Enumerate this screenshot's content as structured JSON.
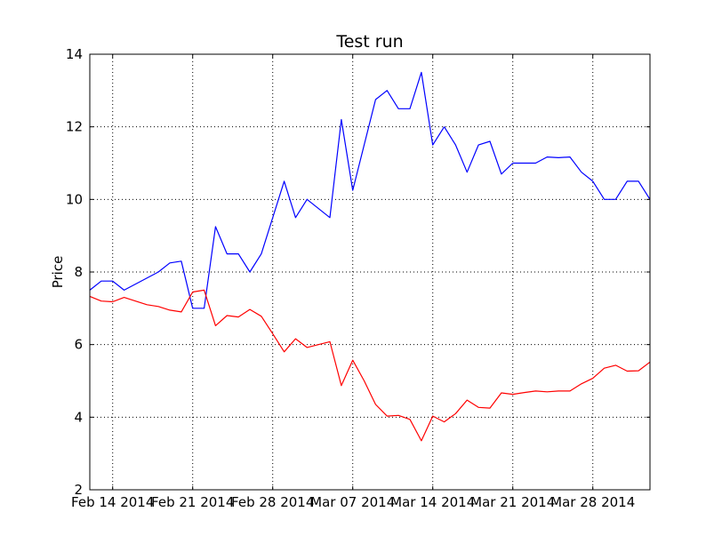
{
  "chart_data": {
    "type": "line",
    "title": "Test run",
    "xlabel": "",
    "ylabel": "Price",
    "ylim": [
      2,
      14
    ],
    "y_ticks": [
      2,
      4,
      6,
      8,
      10,
      12,
      14
    ],
    "x_range": [
      "2014-02-12",
      "2014-04-01"
    ],
    "x_ticks": [
      {
        "date": "2014-02-14",
        "label": "Feb 14 2014"
      },
      {
        "date": "2014-02-21",
        "label": "Feb 21 2014"
      },
      {
        "date": "2014-02-28",
        "label": "Feb 28 2014"
      },
      {
        "date": "2014-03-07",
        "label": "Mar 07 2014"
      },
      {
        "date": "2014-03-14",
        "label": "Mar 14 2014"
      },
      {
        "date": "2014-03-21",
        "label": "Mar 21 2014"
      },
      {
        "date": "2014-03-28",
        "label": "Mar 28 2014"
      }
    ],
    "grid": true,
    "series": [
      {
        "color": "#0000ff",
        "points": [
          [
            "2014-02-12",
            7.5
          ],
          [
            "2014-02-13",
            7.75
          ],
          [
            "2014-02-14",
            7.75
          ],
          [
            "2014-02-15",
            7.5
          ],
          [
            "2014-02-18",
            8.0
          ],
          [
            "2014-02-19",
            8.25
          ],
          [
            "2014-02-20",
            8.3
          ],
          [
            "2014-02-21",
            7.0
          ],
          [
            "2014-02-22",
            7.0
          ],
          [
            "2014-02-23",
            9.25
          ],
          [
            "2014-02-24",
            8.5
          ],
          [
            "2014-02-25",
            8.5
          ],
          [
            "2014-02-26",
            8.0
          ],
          [
            "2014-02-27",
            8.5
          ],
          [
            "2014-03-01",
            10.5
          ],
          [
            "2014-03-02",
            9.5
          ],
          [
            "2014-03-03",
            10.0
          ],
          [
            "2014-03-05",
            9.5
          ],
          [
            "2014-03-06",
            12.2
          ],
          [
            "2014-03-07",
            10.25
          ],
          [
            "2014-03-09",
            12.75
          ],
          [
            "2014-03-10",
            13.0
          ],
          [
            "2014-03-11",
            12.5
          ],
          [
            "2014-03-12",
            12.5
          ],
          [
            "2014-03-13",
            13.5
          ],
          [
            "2014-03-14",
            11.5
          ],
          [
            "2014-03-15",
            12.0
          ],
          [
            "2014-03-16",
            11.5
          ],
          [
            "2014-03-17",
            10.75
          ],
          [
            "2014-03-18",
            11.5
          ],
          [
            "2014-03-19",
            11.6
          ],
          [
            "2014-03-20",
            10.7
          ],
          [
            "2014-03-21",
            11.0
          ],
          [
            "2014-03-23",
            11.0
          ],
          [
            "2014-03-24",
            11.17
          ],
          [
            "2014-03-25",
            11.15
          ],
          [
            "2014-03-26",
            11.17
          ],
          [
            "2014-03-27",
            10.75
          ],
          [
            "2014-03-28",
            10.5
          ],
          [
            "2014-03-29",
            10.0
          ],
          [
            "2014-03-30",
            10.0
          ],
          [
            "2014-03-31",
            10.5
          ],
          [
            "2014-04-01",
            10.5
          ],
          [
            "2014-04-02",
            10.0
          ]
        ]
      },
      {
        "color": "#ff0000",
        "points": [
          [
            "2014-02-12",
            7.33
          ],
          [
            "2014-02-13",
            7.2
          ],
          [
            "2014-02-14",
            7.18
          ],
          [
            "2014-02-15",
            7.3
          ],
          [
            "2014-02-16",
            7.2
          ],
          [
            "2014-02-17",
            7.1
          ],
          [
            "2014-02-18",
            7.05
          ],
          [
            "2014-02-19",
            6.95
          ],
          [
            "2014-02-20",
            6.9
          ],
          [
            "2014-02-21",
            7.45
          ],
          [
            "2014-02-22",
            7.5
          ],
          [
            "2014-02-23",
            6.52
          ],
          [
            "2014-02-24",
            6.8
          ],
          [
            "2014-02-25",
            6.76
          ],
          [
            "2014-02-26",
            6.97
          ],
          [
            "2014-02-27",
            6.78
          ],
          [
            "2014-02-28",
            6.3
          ],
          [
            "2014-03-01",
            5.8
          ],
          [
            "2014-03-02",
            6.16
          ],
          [
            "2014-03-03",
            5.92
          ],
          [
            "2014-03-04",
            6.0
          ],
          [
            "2014-03-05",
            6.08
          ],
          [
            "2014-03-06",
            4.87
          ],
          [
            "2014-03-07",
            5.57
          ],
          [
            "2014-03-08",
            5.0
          ],
          [
            "2014-03-09",
            4.35
          ],
          [
            "2014-03-10",
            4.03
          ],
          [
            "2014-03-11",
            4.05
          ],
          [
            "2014-03-12",
            3.94
          ],
          [
            "2014-03-13",
            3.35
          ],
          [
            "2014-03-14",
            4.03
          ],
          [
            "2014-03-15",
            3.87
          ],
          [
            "2014-03-16",
            4.1
          ],
          [
            "2014-03-17",
            4.47
          ],
          [
            "2014-03-18",
            4.27
          ],
          [
            "2014-03-19",
            4.25
          ],
          [
            "2014-03-20",
            4.67
          ],
          [
            "2014-03-21",
            4.63
          ],
          [
            "2014-03-22",
            4.68
          ],
          [
            "2014-03-23",
            4.72
          ],
          [
            "2014-03-24",
            4.7
          ],
          [
            "2014-03-25",
            4.72
          ],
          [
            "2014-03-26",
            4.72
          ],
          [
            "2014-03-27",
            4.92
          ],
          [
            "2014-03-28",
            5.07
          ],
          [
            "2014-03-29",
            5.35
          ],
          [
            "2014-03-30",
            5.43
          ],
          [
            "2014-03-31",
            5.27
          ],
          [
            "2014-04-01",
            5.28
          ],
          [
            "2014-04-02",
            5.52
          ]
        ]
      }
    ]
  }
}
